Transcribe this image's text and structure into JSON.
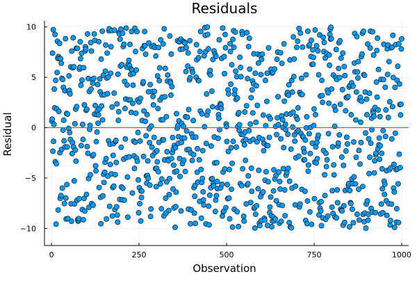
{
  "chart_data": {
    "type": "scatter",
    "title": "Residuals",
    "xlabel": "Observation",
    "ylabel": "Residual",
    "xlim": [
      -20,
      1020
    ],
    "ylim": [
      -11.7,
      10.6
    ],
    "xticks": [
      0,
      250,
      500,
      750,
      1000
    ],
    "xtick_labels": [
      "0",
      "250",
      "500",
      "750",
      "1000"
    ],
    "yticks": [
      -10,
      -5,
      0,
      5,
      10
    ],
    "ytick_labels": [
      "−10",
      "−5",
      "0",
      "5",
      "10"
    ],
    "grid": true,
    "legend": "none",
    "reference_line": {
      "y": 0,
      "color": "#ff3b30"
    },
    "series": [
      {
        "marker_color": "#009af9",
        "marker_edge_color": "#1a1a1a",
        "points_count": 1000,
        "x_range": [
          1,
          1000
        ],
        "y_range": [
          -10,
          10
        ],
        "distribution": "uniform"
      }
    ]
  }
}
